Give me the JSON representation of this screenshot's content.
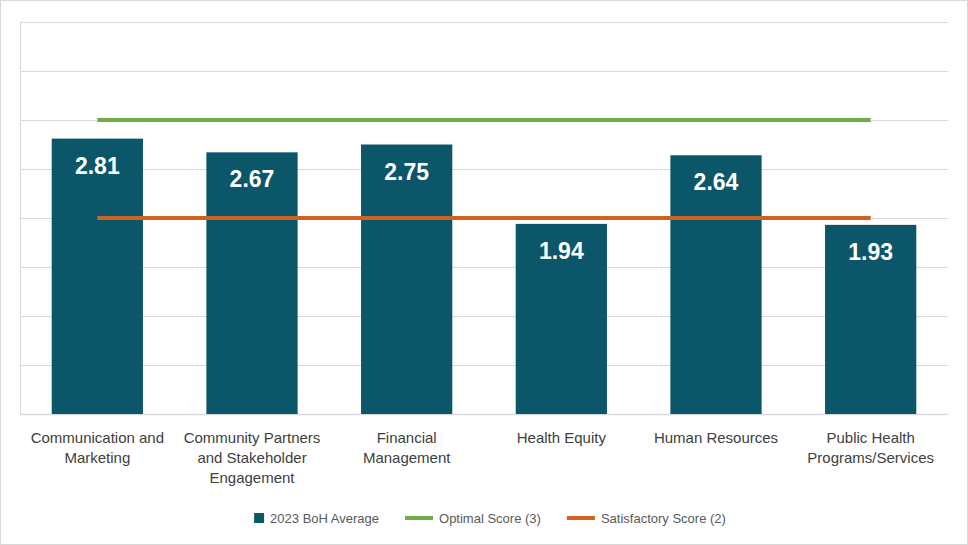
{
  "chart_data": {
    "type": "bar",
    "categories": [
      "Communication and Marketing",
      "Community Partners and Stakeholder Engagement",
      "Financial Management",
      "Health Equity",
      "Human Resources",
      "Public Health Programs/Services"
    ],
    "series": [
      {
        "name": "2023 BoH Average",
        "type": "bar",
        "color": "#0b5668",
        "values": [
          2.81,
          2.67,
          2.75,
          1.94,
          2.64,
          1.93
        ]
      },
      {
        "name": "Optimal Score (3)",
        "type": "line",
        "color": "#70ad47",
        "values": [
          3,
          3,
          3,
          3,
          3,
          3
        ]
      },
      {
        "name": "Satisfactory Score (2)",
        "type": "line",
        "color": "#d0611e",
        "values": [
          2,
          2,
          2,
          2,
          2,
          2
        ]
      }
    ],
    "ylim": [
      0,
      4
    ],
    "yticks": [
      0,
      0.5,
      1,
      1.5,
      2,
      2.5,
      3,
      3.5,
      4
    ],
    "grid": true,
    "legend": "bottom",
    "data_labels": true,
    "tick_labels": "x"
  }
}
